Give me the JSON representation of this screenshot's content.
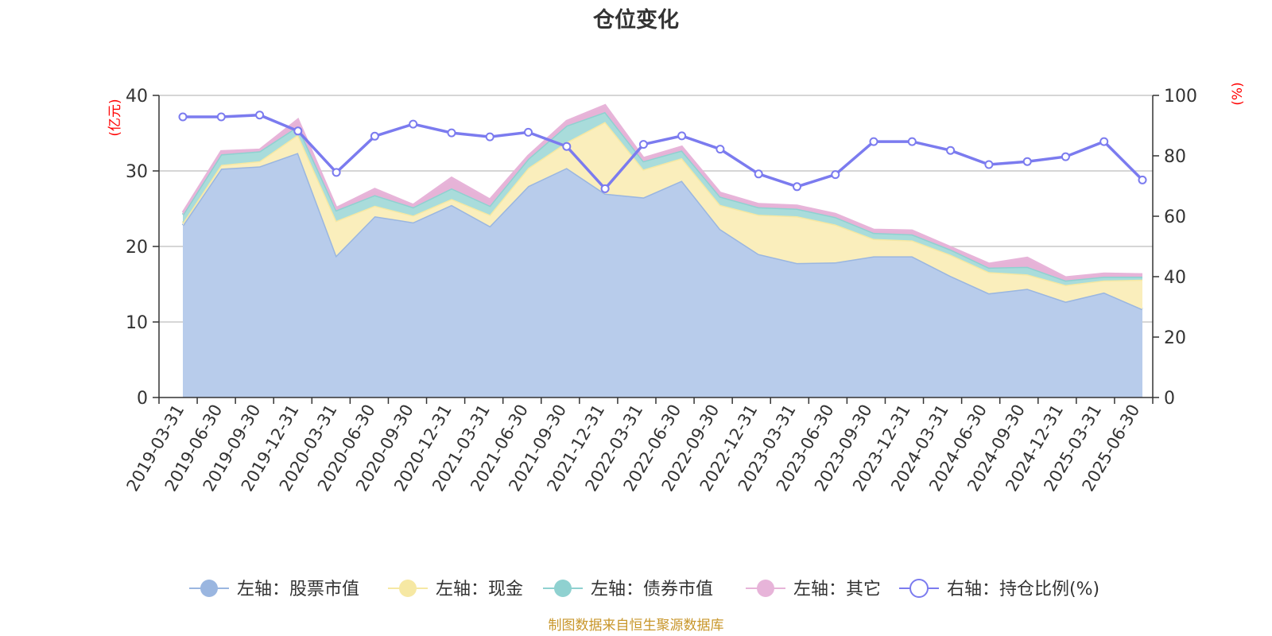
{
  "chart_data": {
    "type": "area",
    "title": "仓位变化",
    "ylabel_left": "(亿元)",
    "ylabel_right": "(%)",
    "ylim_left": [
      0,
      40
    ],
    "yticks_left": [
      0,
      10,
      20,
      30,
      40
    ],
    "ylim_right": [
      0,
      100
    ],
    "yticks_right": [
      0,
      20,
      40,
      60,
      80,
      100
    ],
    "grid": true,
    "stacked": true,
    "legend_position": "bottom",
    "categories": [
      "2019-03-31",
      "2019-06-30",
      "2019-09-30",
      "2019-12-31",
      "2020-03-31",
      "2020-06-30",
      "2020-09-30",
      "2020-12-31",
      "2021-03-31",
      "2021-06-30",
      "2021-09-30",
      "2021-12-31",
      "2022-03-31",
      "2022-06-30",
      "2022-09-30",
      "2022-12-31",
      "2023-03-31",
      "2023-06-30",
      "2023-09-30",
      "2023-12-31",
      "2024-03-31",
      "2024-06-30",
      "2024-09-30",
      "2024-12-31",
      "2025-03-31",
      "2025-06-30"
    ],
    "series": [
      {
        "name": "左轴：股票市值",
        "axis": "left",
        "kind": "area",
        "color": "#9ab6e0",
        "fill": "#b8cceb",
        "values": [
          22.8,
          30.3,
          30.6,
          32.4,
          18.8,
          24.0,
          23.2,
          25.5,
          22.7,
          28.0,
          30.4,
          27.0,
          26.5,
          28.7,
          22.3,
          19.0,
          17.8,
          17.9,
          18.7,
          18.7,
          16.1,
          13.8,
          14.4,
          12.7,
          13.9,
          11.7
        ]
      },
      {
        "name": "左轴：现金",
        "axis": "left",
        "kind": "area",
        "color": "#f6e8a3",
        "fill": "#faeebc",
        "values": [
          0.3,
          0.5,
          0.7,
          2.4,
          4.6,
          1.4,
          0.9,
          0.8,
          1.5,
          2.4,
          3.4,
          9.5,
          3.7,
          3.0,
          3.2,
          5.2,
          6.2,
          5.0,
          2.3,
          2.1,
          2.8,
          2.8,
          1.9,
          2.2,
          1.6,
          3.9
        ]
      },
      {
        "name": "左轴：债券市值",
        "axis": "left",
        "kind": "area",
        "color": "#8fd1d0",
        "fill": "#a9dcdb",
        "values": [
          1.1,
          1.4,
          1.3,
          1.1,
          1.4,
          1.4,
          1.1,
          1.4,
          1.2,
          1.2,
          2.2,
          1.3,
          1.1,
          1.0,
          1.1,
          1.0,
          1.0,
          1.0,
          0.8,
          0.8,
          0.7,
          0.6,
          1.0,
          0.6,
          0.5,
          0.4
        ]
      },
      {
        "name": "左轴：其它",
        "axis": "left",
        "kind": "area",
        "color": "#e7b4d9",
        "fill": "#e6b3d7",
        "values": [
          0.3,
          0.4,
          0.2,
          0.9,
          0.3,
          0.8,
          0.3,
          1.4,
          0.8,
          0.4,
          0.6,
          0.9,
          0.4,
          0.5,
          0.5,
          0.4,
          0.4,
          0.4,
          0.4,
          0.5,
          0.3,
          0.5,
          1.2,
          0.4,
          0.4,
          0.3
        ]
      },
      {
        "name": "右轴：持仓比例(%)",
        "axis": "right",
        "kind": "line",
        "color": "#7b7bef",
        "values": [
          92.9,
          92.9,
          93.5,
          88.2,
          74.5,
          86.5,
          90.5,
          87.6,
          86.3,
          87.8,
          83.1,
          69.1,
          83.8,
          86.6,
          82.2,
          74.0,
          69.8,
          73.8,
          84.7,
          84.7,
          81.8,
          77.1,
          78.1,
          79.7,
          84.7,
          72.0
        ]
      }
    ]
  },
  "footer": {
    "source_text": "制图数据来自恒生聚源数据库",
    "source_color": "#c8962a"
  },
  "colors": {
    "axis": "#333333",
    "grid": "#c8c8c8",
    "title": "#333333",
    "axis_name": "#ff0000"
  }
}
